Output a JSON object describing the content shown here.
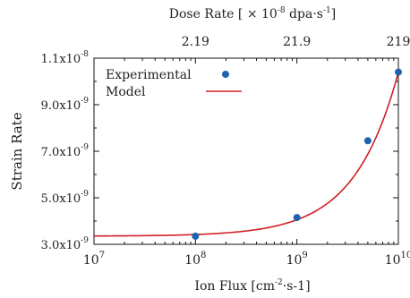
{
  "chart_data": {
    "type": "scatter",
    "x_scale": "log",
    "xlim": [
      10000000,
      10000000000
    ],
    "ylim": [
      3e-09,
      1.1e-08
    ],
    "grid": false,
    "legend_position": "top-left",
    "xlabel": {
      "main": "Ion Flux [cm",
      "sup": "-2",
      "tail": "·s-1]"
    },
    "ylabel": "Strain Rate",
    "top_axis_label": {
      "main": "Dose Rate [ × 10",
      "sup": "-8",
      "tail": " dpa·s",
      "sup2": "-1",
      "end": "]"
    },
    "x_ticks": [
      {
        "value": 10000000,
        "base": "10",
        "exp": "7"
      },
      {
        "value": 100000000,
        "base": "10",
        "exp": "8"
      },
      {
        "value": 1000000000,
        "base": "10",
        "exp": "9"
      },
      {
        "value": 10000000000,
        "base": "10",
        "exp": "10"
      }
    ],
    "y_ticks": [
      {
        "value": 3e-09,
        "mant": "3.0x10",
        "exp": "-9"
      },
      {
        "value": 5e-09,
        "mant": "5.0x10",
        "exp": "-9"
      },
      {
        "value": 7e-09,
        "mant": "7.0x10",
        "exp": "-9"
      },
      {
        "value": 9e-09,
        "mant": "9.0x10",
        "exp": "-9"
      },
      {
        "value": 1.1e-08,
        "mant": "1.1x10",
        "exp": "-8"
      }
    ],
    "top_ticks": [
      {
        "x": 100000000,
        "label": "2.19"
      },
      {
        "x": 1000000000,
        "label": "21.9"
      },
      {
        "x": 10000000000,
        "label": "219"
      }
    ],
    "series": [
      {
        "name": "Experimental",
        "kind": "points",
        "color": "#1f63b0",
        "points": [
          {
            "x": 100000000,
            "y": 3.35e-09
          },
          {
            "x": 1000000000,
            "y": 4.15e-09
          },
          {
            "x": 5000000000,
            "y": 7.45e-09
          },
          {
            "x": 10000000000,
            "y": 1.04e-08
          }
        ]
      },
      {
        "name": "Model",
        "kind": "curve",
        "color": "#d01f24",
        "curve": {
          "form": "y = a + b*x",
          "a": 3.35e-09,
          "b": 7.05e-19,
          "x_max": 11000000000
        }
      }
    ]
  }
}
